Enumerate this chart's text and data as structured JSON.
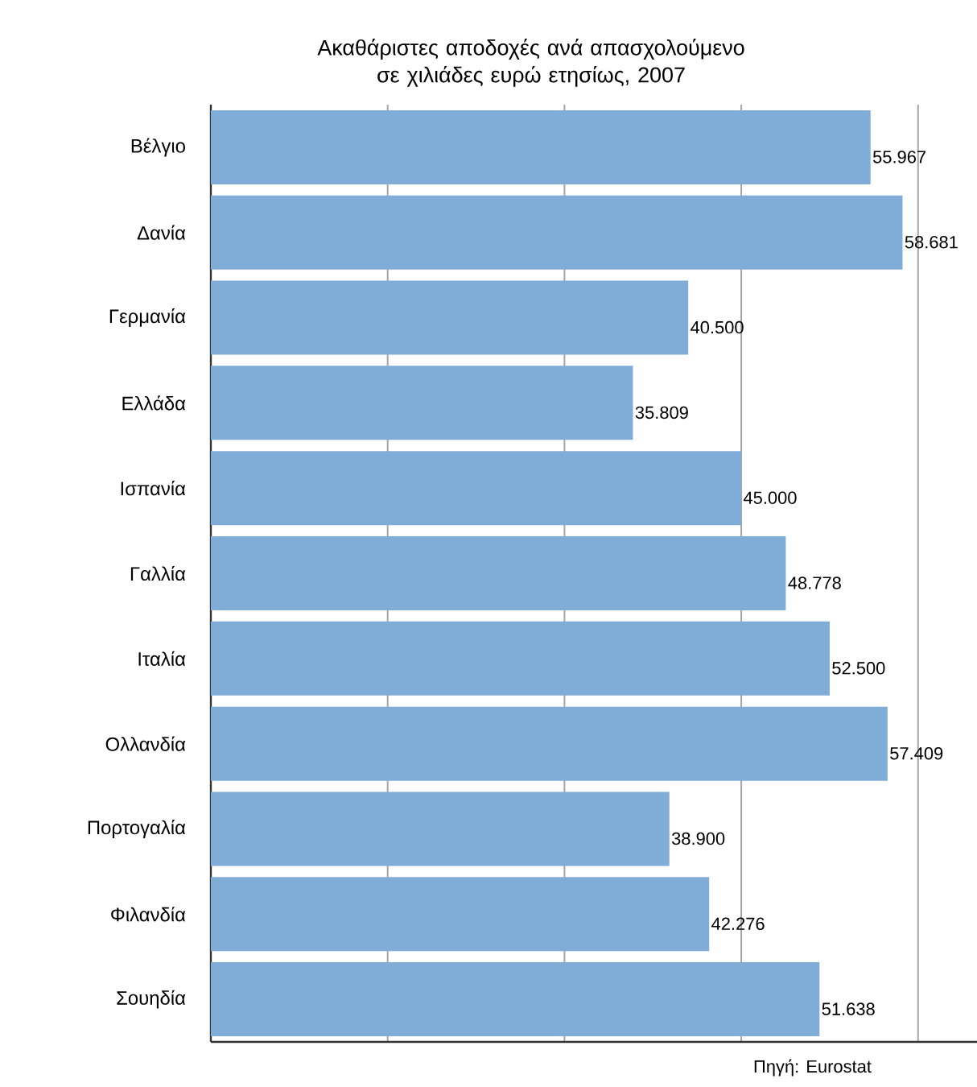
{
  "chart_data": {
    "type": "bar",
    "orientation": "horizontal",
    "title": "Ακαθάριστες αποδοχές ανά απασχολούμενο σε χιλιάδες ευρώ ετησίως, 2007",
    "categories": [
      "Βέλγιο",
      "Δανία",
      "Γερμανία",
      "Ελλάδα",
      "Ισπανία",
      "Γαλλία",
      "Ιταλία",
      "Ολλανδία",
      "Πορτογαλία",
      "Φιλανδία",
      "Σουηδία"
    ],
    "values": [
      55.967,
      58.681,
      40.5,
      35.809,
      45.0,
      48.778,
      52.5,
      57.409,
      38.9,
      42.276,
      51.638
    ],
    "value_labels": [
      "55.967",
      "58.681",
      "40.500",
      "35.809",
      "45.000",
      "48.778",
      "52.500",
      "57.409",
      "38.900",
      "42.276",
      "51.638"
    ],
    "color": "#80acd8",
    "xlim": [
      0,
      65
    ],
    "xticks": [
      {
        "value": 15,
        "label": null
      },
      {
        "value": 30,
        "label": null
      },
      {
        "value": 45,
        "label": null
      },
      {
        "value": 60,
        "label": null
      }
    ],
    "tick_labels": "y",
    "grid": "x",
    "annotations": [
      "Πηγή: Eurostat"
    ]
  }
}
